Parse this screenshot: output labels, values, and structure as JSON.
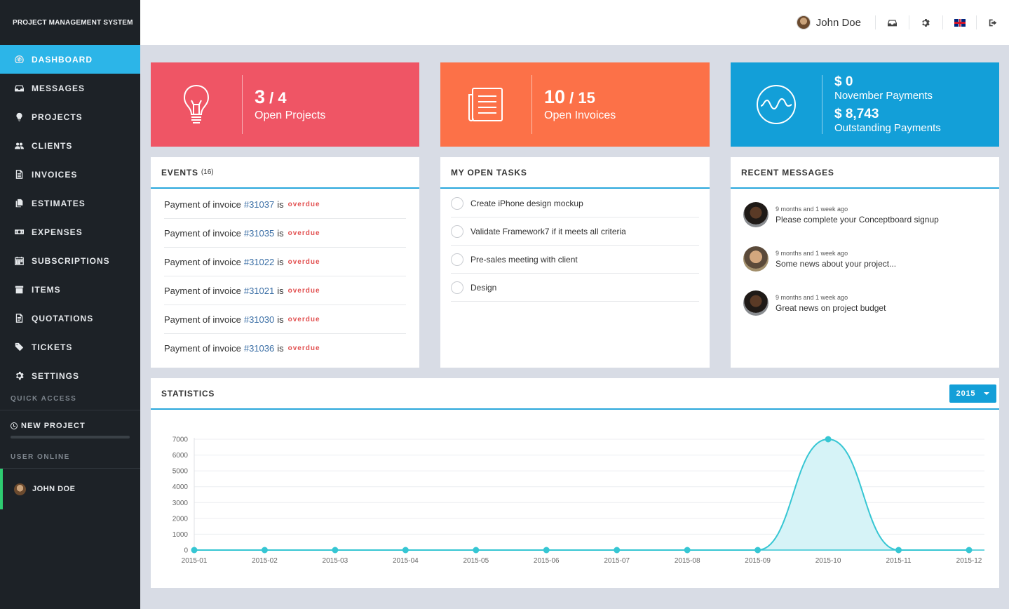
{
  "app": {
    "brand": "PROJECT MANAGEMENT SYSTEM"
  },
  "sidebar": {
    "items": [
      {
        "label": "DASHBOARD",
        "icon": "dashboard-icon",
        "active": true
      },
      {
        "label": "MESSAGES",
        "icon": "inbox-icon"
      },
      {
        "label": "PROJECTS",
        "icon": "lightbulb-icon"
      },
      {
        "label": "CLIENTS",
        "icon": "users-icon"
      },
      {
        "label": "INVOICES",
        "icon": "file-icon"
      },
      {
        "label": "ESTIMATES",
        "icon": "copy-icon"
      },
      {
        "label": "EXPENSES",
        "icon": "money-icon"
      },
      {
        "label": "SUBSCRIPTIONS",
        "icon": "calendar-icon"
      },
      {
        "label": "ITEMS",
        "icon": "archive-icon"
      },
      {
        "label": "QUOTATIONS",
        "icon": "file-text-icon"
      },
      {
        "label": "TICKETS",
        "icon": "tag-icon"
      },
      {
        "label": "SETTINGS",
        "icon": "gear-icon"
      }
    ],
    "quick_access_label": "QUICK ACCESS",
    "new_project_label": "NEW PROJECT",
    "user_online_label": "USER ONLINE",
    "online_user": "JOHN DOE"
  },
  "topbar": {
    "user_name": "John Doe"
  },
  "stats": {
    "projects": {
      "open": "3",
      "total": "4",
      "label": "Open Projects",
      "color": "#ef5565"
    },
    "invoices": {
      "open": "10",
      "total": "15",
      "label": "Open Invoices",
      "color": "#fc7148"
    },
    "payments": {
      "november_amount": "$ 0",
      "november_label": "November Payments",
      "outstanding_amount": "$ 8,743",
      "outstanding_label": "Outstanding Payments",
      "color": "#139fd8"
    }
  },
  "events": {
    "title": "EVENTS",
    "count": "(16)",
    "items": [
      {
        "prefix": "Payment of invoice",
        "invoice": "#31037",
        "suffix": "is",
        "status": "overdue"
      },
      {
        "prefix": "Payment of invoice",
        "invoice": "#31035",
        "suffix": "is",
        "status": "overdue"
      },
      {
        "prefix": "Payment of invoice",
        "invoice": "#31022",
        "suffix": "is",
        "status": "overdue"
      },
      {
        "prefix": "Payment of invoice",
        "invoice": "#31021",
        "suffix": "is",
        "status": "overdue"
      },
      {
        "prefix": "Payment of invoice",
        "invoice": "#31030",
        "suffix": "is",
        "status": "overdue"
      },
      {
        "prefix": "Payment of invoice",
        "invoice": "#31036",
        "suffix": "is",
        "status": "overdue"
      }
    ]
  },
  "tasks": {
    "title": "MY OPEN TASKS",
    "items": [
      "Create iPhone design mockup",
      "Validate Framework7 if it meets all criteria",
      "Pre-sales meeting with client",
      "Design"
    ]
  },
  "messages": {
    "title": "RECENT MESSAGES",
    "items": [
      {
        "time": "9 months and 1 week ago",
        "text": "Please complete your Conceptboard signup"
      },
      {
        "time": "9 months and 1 week ago",
        "text": "Some news about your project..."
      },
      {
        "time": "9 months and 1 week ago",
        "text": "Great news on project budget"
      }
    ]
  },
  "statistics": {
    "title": "STATISTICS",
    "year": "2015"
  },
  "chart_data": {
    "type": "area",
    "x": [
      "2015-01",
      "2015-02",
      "2015-03",
      "2015-04",
      "2015-05",
      "2015-06",
      "2015-07",
      "2015-08",
      "2015-09",
      "2015-10",
      "2015-11",
      "2015-12"
    ],
    "values": [
      0,
      0,
      0,
      0,
      0,
      0,
      0,
      0,
      0,
      7000,
      0,
      0
    ],
    "ylim": [
      0,
      7000
    ],
    "yticks": [
      0,
      1000,
      2000,
      3000,
      4000,
      5000,
      6000,
      7000
    ],
    "grid": true,
    "line_color": "#36c6d3",
    "fill_color": "#d6f3f7"
  }
}
